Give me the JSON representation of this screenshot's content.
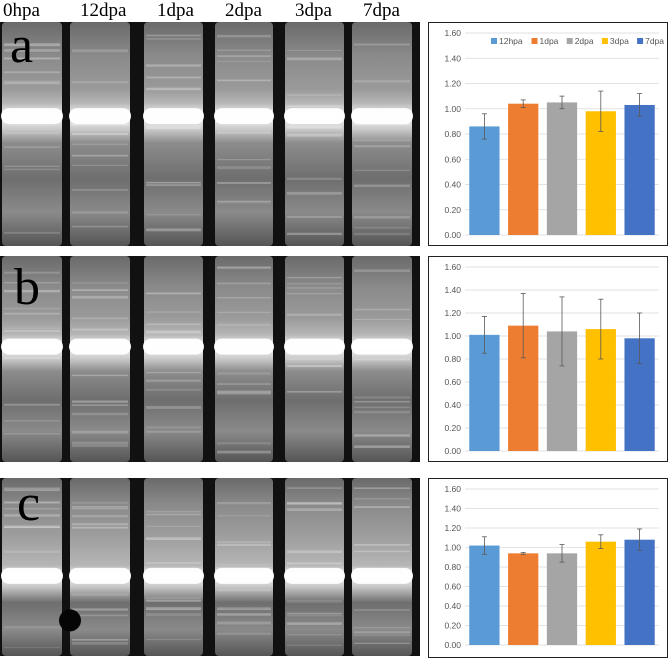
{
  "lane_labels": [
    "0hpa",
    "12dpa",
    "1dpa",
    "2dpa",
    "3dpa",
    "7dpa"
  ],
  "panels": [
    {
      "letter": "a"
    },
    {
      "letter": "b"
    },
    {
      "letter": "c"
    }
  ],
  "colors": {
    "12hpa": "#5b9bd5",
    "1dpa": "#ed7d31",
    "2dpa": "#a5a5a5",
    "3dpa": "#ffc000",
    "7dpa": "#4472c4"
  },
  "chart_data": [
    {
      "type": "bar",
      "categories": [
        "12hpa",
        "1dpa",
        "2dpa",
        "3dpa",
        "7dpa"
      ],
      "values": [
        0.86,
        1.04,
        1.05,
        0.98,
        1.03
      ],
      "errors": [
        0.1,
        0.03,
        0.05,
        0.16,
        0.09
      ],
      "yticks": [
        "0.00",
        "0.20",
        "0.40",
        "0.60",
        "0.80",
        "1.00",
        "1.20",
        "1.40",
        "1.60"
      ],
      "ylim": [
        0,
        1.6
      ],
      "legend": [
        "12hpa",
        "1dpa",
        "2dpa",
        "3dpa",
        "7dpa"
      ],
      "legend_position": "top-right",
      "grid": true
    },
    {
      "type": "bar",
      "categories": [
        "12hpa",
        "1dpa",
        "2dpa",
        "3dpa",
        "7dpa"
      ],
      "values": [
        1.01,
        1.09,
        1.04,
        1.06,
        0.98
      ],
      "errors": [
        0.16,
        0.28,
        0.3,
        0.26,
        0.22
      ],
      "yticks": [
        "0.00",
        "0.20",
        "0.40",
        "0.60",
        "0.80",
        "1.00",
        "1.20",
        "1.40",
        "1.60"
      ],
      "ylim": [
        0,
        1.6
      ],
      "grid": true
    },
    {
      "type": "bar",
      "categories": [
        "12hpa",
        "1dpa",
        "2dpa",
        "3dpa",
        "7dpa"
      ],
      "values": [
        1.02,
        0.94,
        0.94,
        1.06,
        1.08
      ],
      "errors": [
        0.09,
        0.01,
        0.09,
        0.07,
        0.11
      ],
      "yticks": [
        "0.00",
        "0.20",
        "0.40",
        "0.60",
        "0.80",
        "1.00",
        "1.20",
        "1.40",
        "1.60"
      ],
      "ylim": [
        0,
        1.6
      ],
      "grid": true
    }
  ]
}
